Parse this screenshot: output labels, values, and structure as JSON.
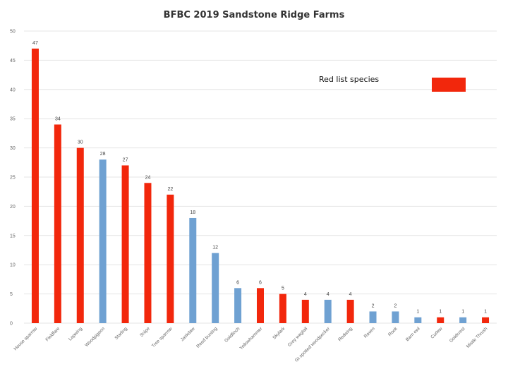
{
  "chart_data": {
    "type": "bar",
    "title": "BFBC 2019 Sandstone Ridge Farms",
    "categories": [
      "House sparrow",
      "Fieldfare",
      "Lapwing",
      "Woodpigeon",
      "Starling",
      "Snipe",
      "Tree sparrow",
      "Jackdaw",
      "Reed bunting",
      "Goldfinch",
      "Yellowhammer",
      "Skylark",
      "Grey wagtail",
      "Gt spotted woodpecker",
      "Redwing",
      "Raven",
      "Rook",
      "Barn owl",
      "Curlew",
      "Goldcrest",
      "Mistle Thrush"
    ],
    "values": [
      47,
      34,
      30,
      28,
      27,
      24,
      22,
      18,
      12,
      6,
      6,
      5,
      4,
      4,
      4,
      2,
      2,
      1,
      1,
      1,
      1
    ],
    "red_list": [
      true,
      true,
      true,
      false,
      true,
      true,
      true,
      false,
      false,
      false,
      true,
      true,
      true,
      false,
      true,
      false,
      false,
      false,
      true,
      false,
      true
    ],
    "colors": {
      "red_list": "#f2270c",
      "other": "#6fa1d2",
      "grid": "#e4e4e4"
    },
    "ylim": [
      0,
      50
    ],
    "yticks": [
      0,
      5,
      10,
      15,
      20,
      25,
      30,
      35,
      40,
      45,
      50
    ],
    "legend": {
      "label": "Red list species",
      "placement": "top-right"
    },
    "grid": true,
    "xlabel": "",
    "ylabel": ""
  }
}
